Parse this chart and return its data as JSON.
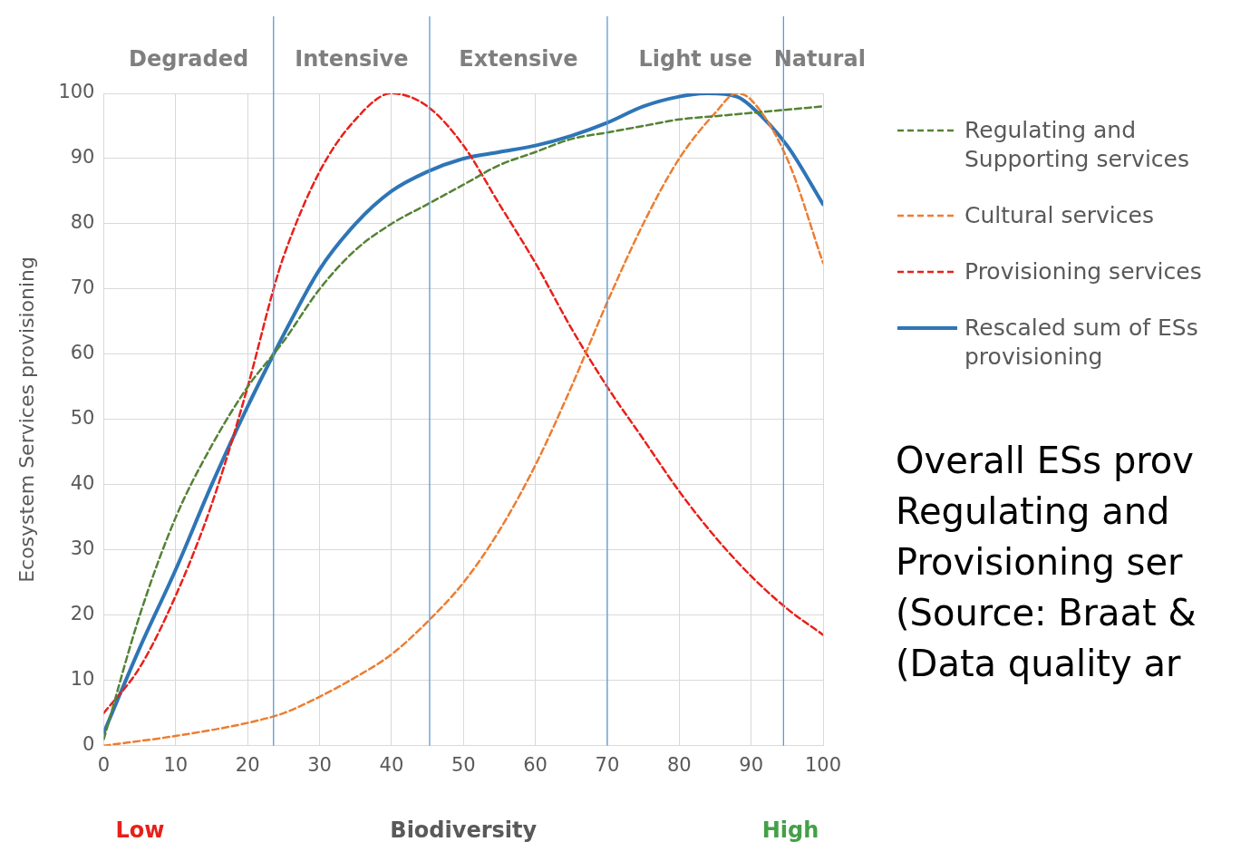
{
  "chart_data": {
    "type": "line",
    "ylabel": "Ecosystem Services provisioning",
    "xlabel": "Biodiversity",
    "xlim": [
      0,
      100
    ],
    "xticks": [
      0,
      10,
      20,
      30,
      40,
      50,
      60,
      70,
      80,
      90,
      100
    ],
    "ylim": [
      0,
      100
    ],
    "yticks": [
      0,
      10,
      20,
      30,
      40,
      50,
      60,
      70,
      80,
      90,
      100
    ],
    "grid": true,
    "legend": "right",
    "series": [
      {
        "name": "Regulating and Supporting services",
        "color": "#548235",
        "line_style": "dashed",
        "x": [
          0,
          5,
          10,
          15,
          20,
          25,
          30,
          35,
          40,
          45,
          50,
          55,
          60,
          65,
          70,
          75,
          80,
          85,
          90,
          95,
          100
        ],
        "values": [
          1,
          20,
          35,
          46,
          55,
          62,
          70,
          76,
          80,
          83,
          86,
          89,
          91,
          93,
          94,
          95,
          96,
          96.5,
          97,
          97.5,
          98
        ]
      },
      {
        "name": "Cultural services",
        "color": "#ed7d31",
        "line_style": "dashed",
        "x": [
          0,
          10,
          20,
          25,
          30,
          35,
          40,
          45,
          50,
          55,
          60,
          65,
          70,
          75,
          80,
          85,
          88,
          90,
          95,
          100
        ],
        "values": [
          0,
          1.5,
          3.5,
          5,
          7.5,
          10.5,
          14,
          19,
          25,
          33,
          43,
          55,
          68,
          80,
          90,
          97,
          100,
          99,
          90,
          74
        ]
      },
      {
        "name": "Provisioning services",
        "color": "#e8201a",
        "line_style": "dashed",
        "x": [
          0,
          5,
          10,
          15,
          20,
          23.6,
          25,
          30,
          35,
          40,
          45,
          50,
          55,
          60,
          65,
          70,
          75,
          80,
          85,
          90,
          95,
          100
        ],
        "values": [
          5,
          12,
          23,
          37,
          55,
          70,
          75,
          88,
          96,
          100,
          98,
          92,
          83,
          74,
          64,
          55,
          47,
          39,
          32,
          26,
          21,
          17
        ]
      },
      {
        "name": "Rescaled sum of ESs provisioning",
        "color": "#2e75b6",
        "line_style": "solid",
        "x": [
          0,
          5,
          10,
          15,
          20,
          23.6,
          25,
          30,
          35,
          40,
          45,
          50,
          55,
          60,
          65,
          70,
          75,
          80,
          84,
          88,
          90,
          95,
          100
        ],
        "values": [
          2,
          15,
          27,
          40,
          52,
          60,
          63,
          73,
          80,
          85,
          88,
          90,
          91,
          92,
          93.5,
          95.5,
          98,
          99.5,
          100,
          99.5,
          98,
          92,
          83
        ]
      }
    ],
    "ref_lines": [
      {
        "axis": "x",
        "value": 23.6,
        "color": "#5b9bd5"
      },
      {
        "axis": "x",
        "value": 45.3,
        "color": "#5b9bd5"
      },
      {
        "axis": "x",
        "value": 70,
        "color": "#5b9bd5"
      },
      {
        "axis": "x",
        "value": 94.5,
        "color": "#5b9bd5"
      }
    ],
    "annotations": [
      "Degraded",
      "Intensive",
      "Extensive",
      "Light use",
      "Natural",
      "Low",
      "High",
      "Overall ESs prov",
      "Regulating and",
      "Provisioning ser",
      "(Source: Braat &",
      "(Data quality ar"
    ]
  }
}
